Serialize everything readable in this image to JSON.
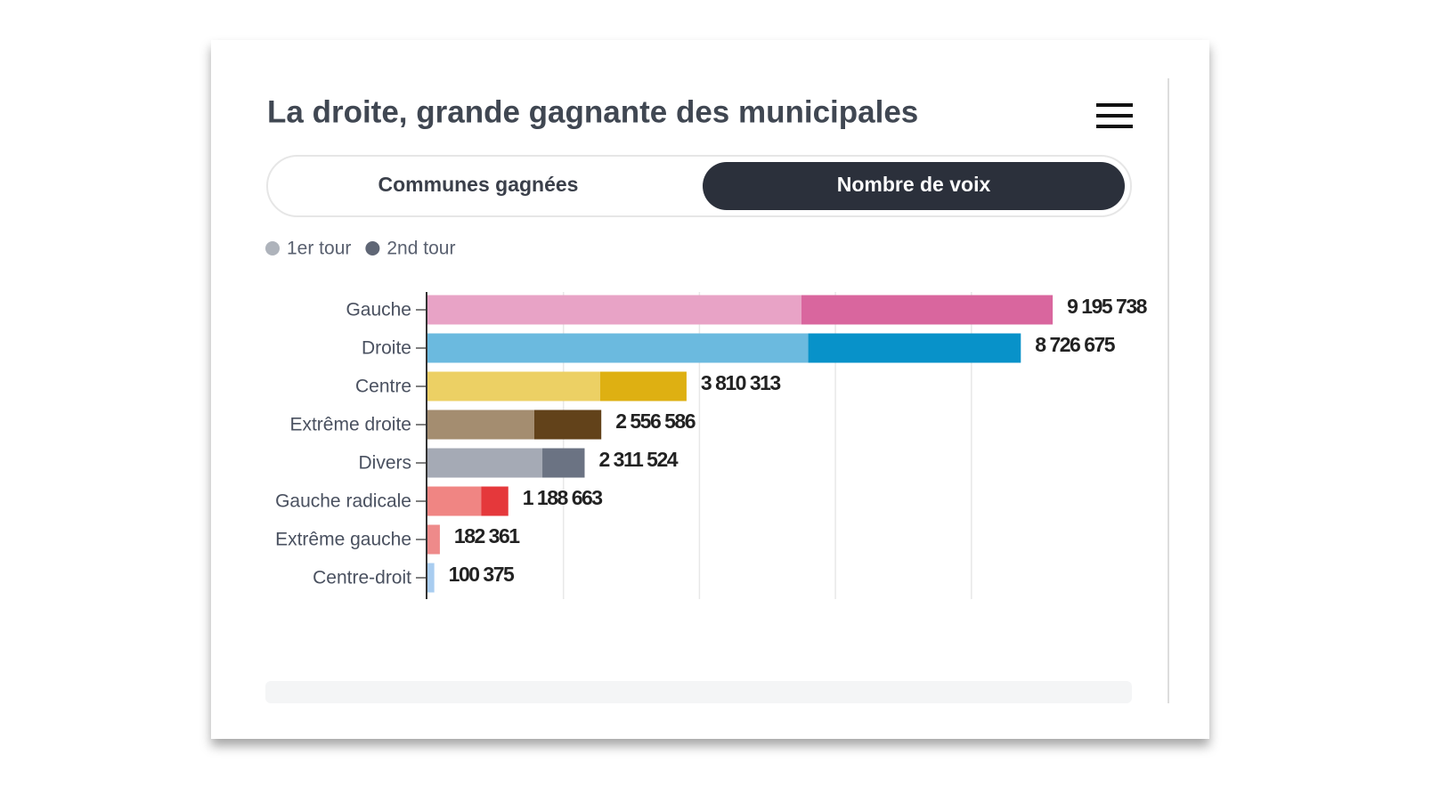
{
  "header": {
    "title": "La droite, grande gagnante des municipales"
  },
  "tabs": [
    "Communes gagnées",
    "Nombre de voix"
  ],
  "chart_data": {
    "type": "bar",
    "orientation": "horizontal",
    "stacked": true,
    "categories": [
      "Gauche",
      "Droite",
      "Centre",
      "Extrême droite",
      "Divers",
      "Gauche radicale",
      "Extrême gauche",
      "Centre-droit"
    ],
    "series": [
      {
        "name": "1er tour",
        "color": "#aeb3bb",
        "colors": [
          "#e8a3c6",
          "#6bbadf",
          "#ecd064",
          "#a48d70",
          "#a5aab5",
          "#f08583",
          "#ee8a8a",
          "#a9cdf0"
        ],
        "values": [
          5500000,
          5600000,
          2540000,
          1570000,
          1690000,
          790000,
          182361,
          100375
        ]
      },
      {
        "name": "2nd tour",
        "color": "#5f6675",
        "colors": [
          "#d9669e",
          "#0892c9",
          "#deb012",
          "#62421a",
          "#6b7383",
          "#e5383b",
          "#e5383b",
          "#5fa5e8"
        ],
        "values": [
          3695738,
          3126675,
          1270313,
          986586,
          621524,
          398663,
          0,
          0
        ]
      }
    ],
    "totals": [
      9195738,
      8726675,
      3810313,
      2556586,
      2311524,
      1188663,
      182361,
      100375
    ],
    "value_labels": [
      "9 195 738",
      "8 726 675",
      "3 810 313",
      "2 556 586",
      "2 311 524",
      "1 188 663",
      "182 361",
      "100 375"
    ],
    "xlim": [
      0,
      10000000
    ],
    "xticks": [
      2000000,
      4000000,
      6000000,
      8000000
    ],
    "grid": true
  }
}
